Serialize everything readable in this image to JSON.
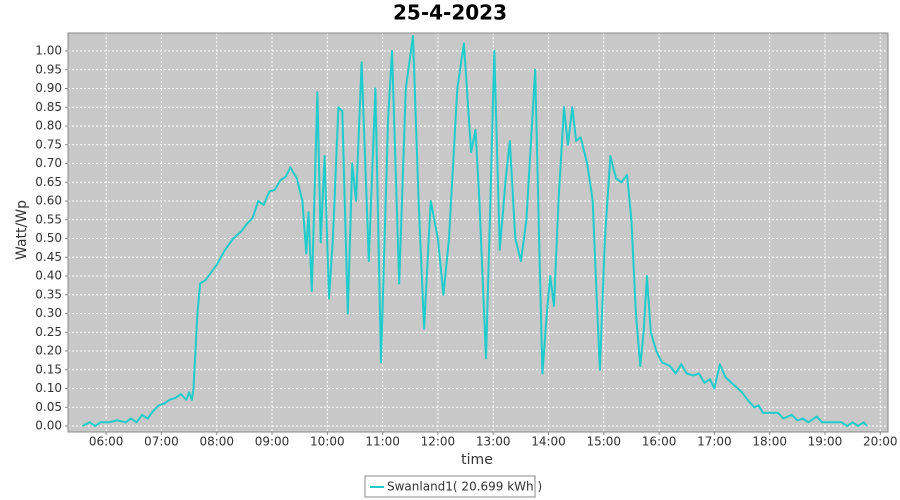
{
  "chart_data": {
    "type": "line",
    "title": "25-4-2023",
    "x_label": "time",
    "y_label": "Watt/Wp",
    "x": [
      5.57,
      5.7,
      5.8,
      5.9,
      6.05,
      6.2,
      6.35,
      6.45,
      6.55,
      6.65,
      6.75,
      6.85,
      6.95,
      7.05,
      7.15,
      7.25,
      7.35,
      7.45,
      7.5,
      7.55,
      7.58,
      7.65,
      7.7,
      7.8,
      7.9,
      8.0,
      8.15,
      8.3,
      8.45,
      8.55,
      8.65,
      8.75,
      8.85,
      8.95,
      9.05,
      9.15,
      9.25,
      9.33,
      9.45,
      9.55,
      9.62,
      9.66,
      9.72,
      9.82,
      9.88,
      9.95,
      10.03,
      10.1,
      10.2,
      10.27,
      10.37,
      10.45,
      10.52,
      10.62,
      10.75,
      10.87,
      10.97,
      11.1,
      11.17,
      11.3,
      11.42,
      11.55,
      11.65,
      11.75,
      11.87,
      12.0,
      12.1,
      12.2,
      12.35,
      12.47,
      12.6,
      12.68,
      12.75,
      12.87,
      12.95,
      13.02,
      13.12,
      13.22,
      13.3,
      13.4,
      13.5,
      13.6,
      13.76,
      13.83,
      13.89,
      13.97,
      14.03,
      14.1,
      14.18,
      14.28,
      14.35,
      14.43,
      14.5,
      14.58,
      14.7,
      14.8,
      14.87,
      14.93,
      15.02,
      15.12,
      15.22,
      15.32,
      15.42,
      15.5,
      15.58,
      15.66,
      15.72,
      15.78,
      15.85,
      15.95,
      16.05,
      16.2,
      16.3,
      16.4,
      16.5,
      16.62,
      16.72,
      16.82,
      16.92,
      17.0,
      17.1,
      17.2,
      17.35,
      17.5,
      17.6,
      17.72,
      17.8,
      17.88,
      18.0,
      18.15,
      18.25,
      18.4,
      18.5,
      18.6,
      18.7,
      18.85,
      18.95,
      19.1,
      19.3,
      19.4,
      19.5,
      19.6,
      19.7,
      19.76
    ],
    "series": [
      {
        "name": "Swanland1( 20.699 kWh )",
        "color": "#1ecccc",
        "values": [
          0,
          0.01,
          0,
          0.01,
          0.01,
          0.015,
          0.01,
          0.02,
          0.01,
          0.03,
          0.02,
          0.04,
          0.055,
          0.06,
          0.07,
          0.075,
          0.085,
          0.07,
          0.09,
          0.07,
          0.1,
          0.3,
          0.38,
          0.39,
          0.41,
          0.43,
          0.47,
          0.5,
          0.52,
          0.54,
          0.555,
          0.6,
          0.59,
          0.625,
          0.63,
          0.655,
          0.665,
          0.69,
          0.66,
          0.6,
          0.46,
          0.57,
          0.36,
          0.89,
          0.49,
          0.72,
          0.34,
          0.5,
          0.85,
          0.84,
          0.3,
          0.7,
          0.6,
          0.97,
          0.44,
          0.9,
          0.17,
          0.82,
          1.0,
          0.38,
          0.9,
          1.04,
          0.6,
          0.26,
          0.6,
          0.5,
          0.35,
          0.5,
          0.9,
          1.02,
          0.73,
          0.79,
          0.6,
          0.18,
          0.6,
          1.0,
          0.47,
          0.65,
          0.76,
          0.5,
          0.44,
          0.55,
          0.95,
          0.5,
          0.14,
          0.3,
          0.4,
          0.32,
          0.6,
          0.85,
          0.75,
          0.85,
          0.76,
          0.77,
          0.7,
          0.6,
          0.35,
          0.15,
          0.5,
          0.72,
          0.66,
          0.65,
          0.67,
          0.55,
          0.3,
          0.16,
          0.25,
          0.4,
          0.25,
          0.2,
          0.17,
          0.16,
          0.14,
          0.165,
          0.14,
          0.135,
          0.14,
          0.115,
          0.125,
          0.1,
          0.165,
          0.13,
          0.11,
          0.09,
          0.07,
          0.05,
          0.055,
          0.035,
          0.035,
          0.035,
          0.02,
          0.03,
          0.015,
          0.02,
          0.01,
          0.025,
          0.01,
          0.01,
          0.01,
          0,
          0.01,
          0,
          0.01,
          0
        ]
      }
    ],
    "xlim": [
      5.31,
      20.14
    ],
    "ylim": [
      -0.016,
      1.048
    ],
    "xticks": [
      {
        "value": 6,
        "label": "06:00"
      },
      {
        "value": 7,
        "label": "07:00"
      },
      {
        "value": 8,
        "label": "08:00"
      },
      {
        "value": 9,
        "label": "09:00"
      },
      {
        "value": 10,
        "label": "10:00"
      },
      {
        "value": 11,
        "label": "11:00"
      },
      {
        "value": 12,
        "label": "12:00"
      },
      {
        "value": 13,
        "label": "13:00"
      },
      {
        "value": 14,
        "label": "14:00"
      },
      {
        "value": 15,
        "label": "15:00"
      },
      {
        "value": 16,
        "label": "16:00"
      },
      {
        "value": 17,
        "label": "17:00"
      },
      {
        "value": 18,
        "label": "18:00"
      },
      {
        "value": 19,
        "label": "19:00"
      },
      {
        "value": 20,
        "label": "20:00"
      }
    ],
    "yticks": [
      {
        "value": 0,
        "label": "0.00"
      },
      {
        "value": 0.05,
        "label": "0.05"
      },
      {
        "value": 0.1,
        "label": "0.10"
      },
      {
        "value": 0.15,
        "label": "0.15"
      },
      {
        "value": 0.2,
        "label": "0.20"
      },
      {
        "value": 0.25,
        "label": "0.25"
      },
      {
        "value": 0.3,
        "label": "0.30"
      },
      {
        "value": 0.35,
        "label": "0.35"
      },
      {
        "value": 0.4,
        "label": "0.40"
      },
      {
        "value": 0.45,
        "label": "0.45"
      },
      {
        "value": 0.5,
        "label": "0.50"
      },
      {
        "value": 0.55,
        "label": "0.55"
      },
      {
        "value": 0.6,
        "label": "0.60"
      },
      {
        "value": 0.65,
        "label": "0.65"
      },
      {
        "value": 0.7,
        "label": "0.70"
      },
      {
        "value": 0.75,
        "label": "0.75"
      },
      {
        "value": 0.8,
        "label": "0.80"
      },
      {
        "value": 0.85,
        "label": "0.85"
      },
      {
        "value": 0.9,
        "label": "0.90"
      },
      {
        "value": 0.95,
        "label": "0.95"
      },
      {
        "value": 1,
        "label": "1.00"
      }
    ],
    "grid": true,
    "legend": "bottom"
  }
}
